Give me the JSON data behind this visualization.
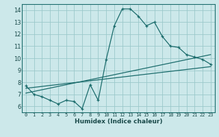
{
  "xlabel": "Humidex (Indice chaleur)",
  "bg_color": "#cce8ea",
  "grid_color": "#9ac8ca",
  "line_color": "#1a6b6b",
  "xlim": [
    -0.5,
    23.5
  ],
  "ylim": [
    5.5,
    14.5
  ],
  "xticks": [
    0,
    1,
    2,
    3,
    4,
    5,
    6,
    7,
    8,
    9,
    10,
    11,
    12,
    13,
    14,
    15,
    16,
    17,
    18,
    19,
    20,
    21,
    22,
    23
  ],
  "yticks": [
    6,
    7,
    8,
    9,
    10,
    11,
    12,
    13,
    14
  ],
  "line1_x": [
    0,
    1,
    2,
    3,
    4,
    5,
    6,
    7,
    8,
    9,
    10,
    11,
    12,
    13,
    14,
    15,
    16,
    17,
    18,
    19,
    20,
    21,
    22,
    23
  ],
  "line1_y": [
    7.7,
    7.0,
    6.8,
    6.5,
    6.2,
    6.5,
    6.4,
    5.8,
    7.8,
    6.5,
    9.9,
    12.7,
    14.1,
    14.1,
    13.5,
    12.7,
    13.0,
    11.8,
    11.0,
    10.9,
    10.3,
    10.1,
    9.9,
    9.5
  ],
  "line2_x": [
    0,
    23
  ],
  "line2_y": [
    7.5,
    9.3
  ],
  "line3_x": [
    0,
    23
  ],
  "line3_y": [
    7.1,
    10.3
  ]
}
